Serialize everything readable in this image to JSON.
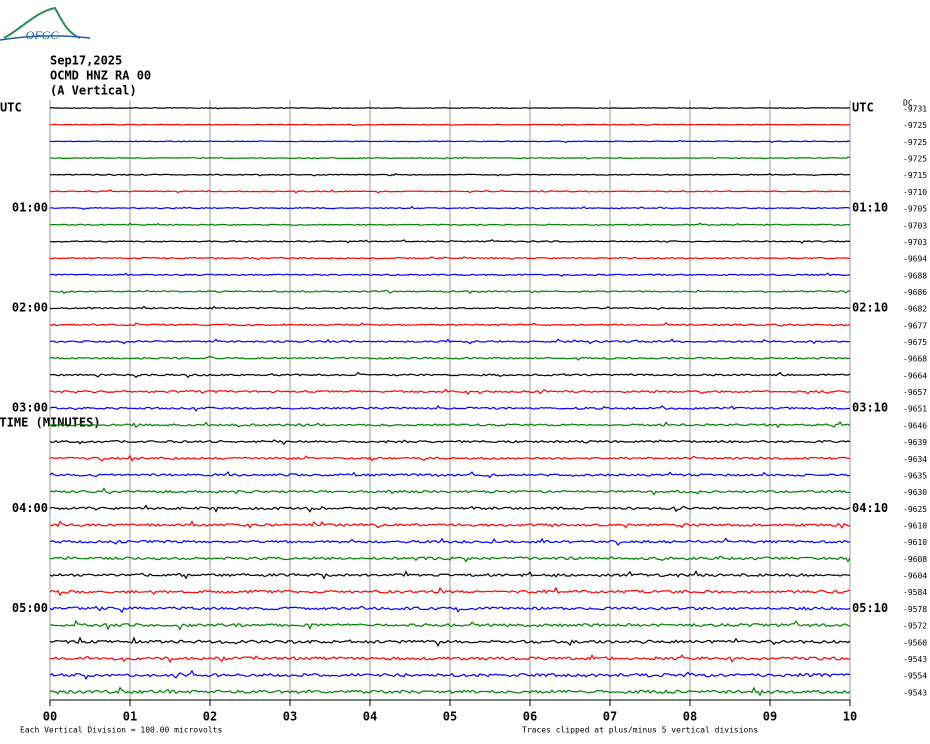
{
  "chart_data": {
    "type": "helicorder",
    "logo": "OFGC",
    "title_lines": [
      "Sep17,2025",
      "OCMD HNZ RA 00",
      "(A Vertical)"
    ],
    "left_labels": [
      "UTC",
      "01:00",
      "02:00",
      "03:00",
      "04:00",
      "05:00"
    ],
    "right_labels": [
      "UTC",
      "01:10",
      "02:10",
      "03:10",
      "04:10",
      "05:10"
    ],
    "offset_header": "DC",
    "offsets": [
      -9731,
      -9725,
      -9725,
      -9725,
      -9715,
      -9710,
      -9705,
      -9703,
      -9703,
      -9694,
      -9688,
      -9686,
      -9682,
      -9677,
      -9675,
      -9668,
      -9664,
      -9657,
      -9651,
      -9646,
      -9639,
      -9634,
      -9635,
      -9630,
      -9625,
      -9610,
      -9610,
      -9608,
      -9604,
      -9584,
      -9578,
      -9572,
      -9560,
      -9543,
      -9554,
      -9543
    ],
    "colors": [
      "#000000",
      "#ff0000",
      "#0000ff",
      "#008000"
    ],
    "xlim": [
      0,
      10
    ],
    "xticks": [
      {
        "value": 0,
        "label": "00"
      },
      {
        "value": 1,
        "label": "01"
      },
      {
        "value": 2,
        "label": "02"
      },
      {
        "value": 3,
        "label": "03"
      },
      {
        "value": 4,
        "label": "04"
      },
      {
        "value": 5,
        "label": "05"
      },
      {
        "value": 6,
        "label": "06"
      },
      {
        "value": 7,
        "label": "07"
      },
      {
        "value": 8,
        "label": "08"
      },
      {
        "value": 9,
        "label": "09"
      },
      {
        "value": 10,
        "label": "10"
      }
    ],
    "xlabel": "TIME (MINUTES)",
    "footnote_left": "Each Vertical Division =  100.00 microvolts",
    "footnote_right": "Traces clipped at plus/minus 5 vertical divisions",
    "grid": true
  }
}
